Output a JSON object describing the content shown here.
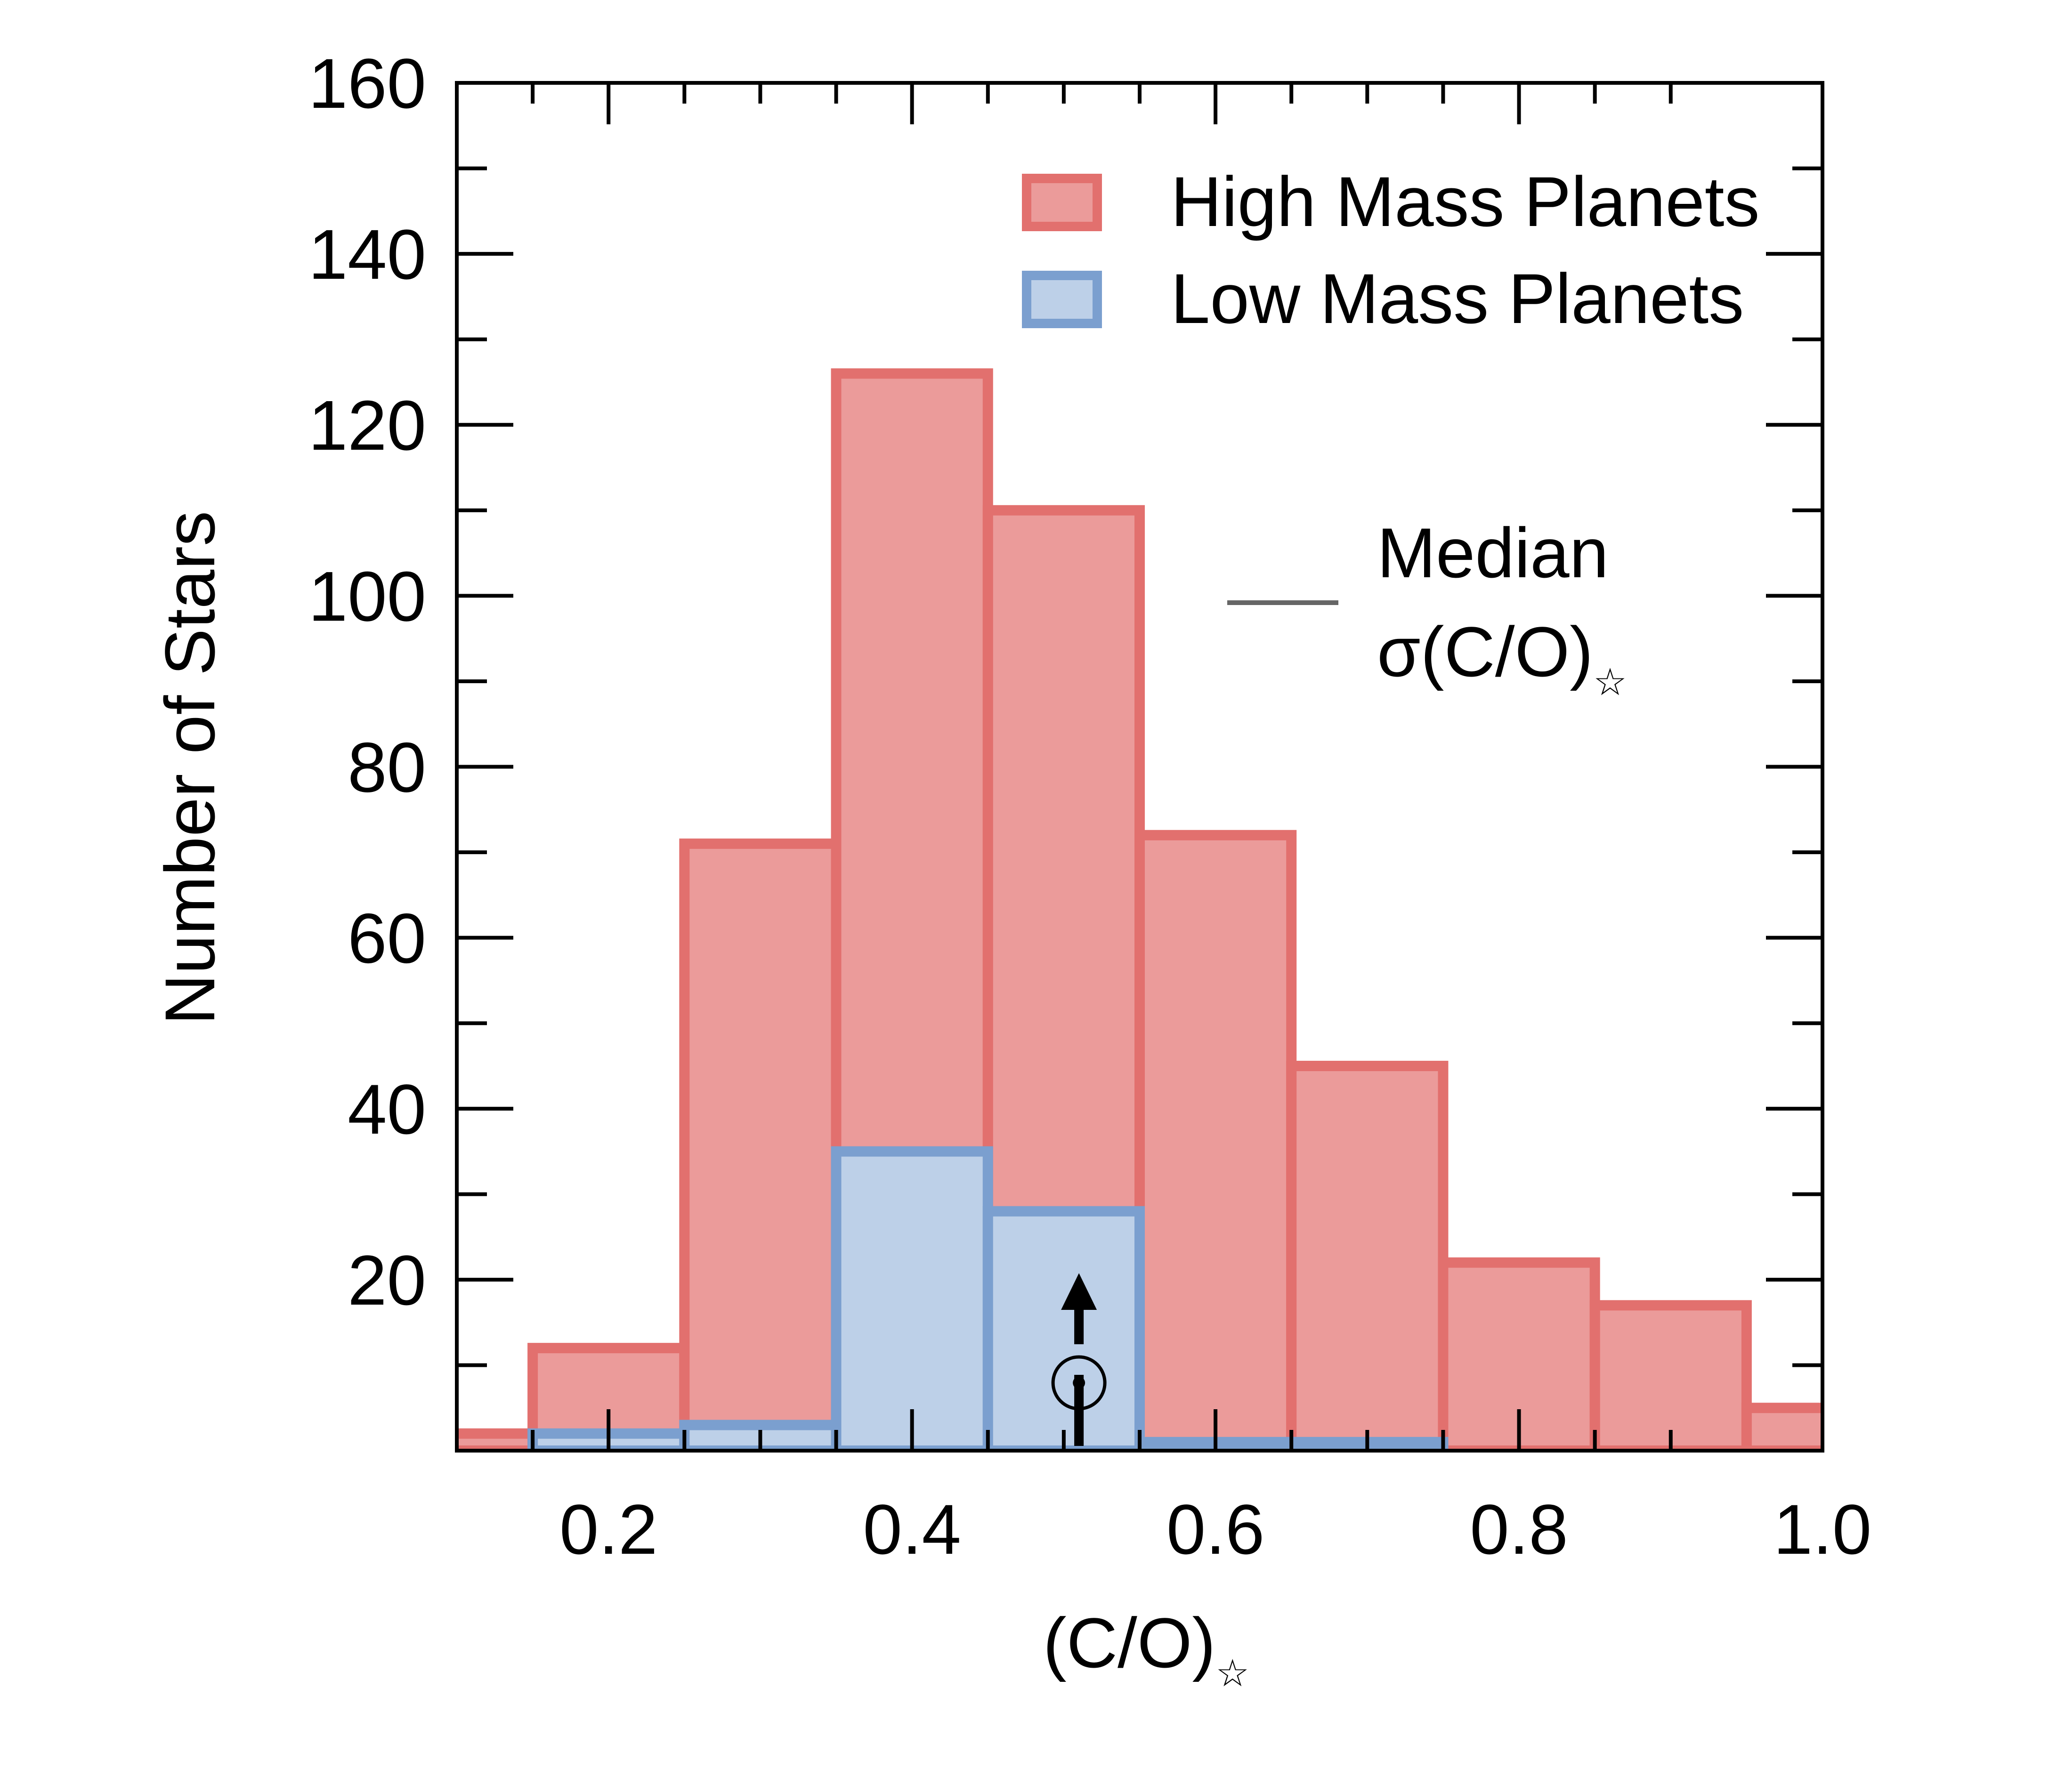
{
  "chart_data": {
    "type": "bar",
    "xlabel": "(C/O)",
    "xlabel_subscript": "☆",
    "ylabel": "Number of Stars",
    "xlim": [
      0.1,
      1.0
    ],
    "ylim": [
      0,
      160
    ],
    "x_ticks": [
      "0.2",
      "0.4",
      "0.6",
      "0.8",
      "1.0"
    ],
    "y_ticks": [
      "20",
      "40",
      "60",
      "80",
      "100",
      "120",
      "140",
      "160"
    ],
    "bin_edges": [
      0.05,
      0.15,
      0.25,
      0.35,
      0.45,
      0.55,
      0.65,
      0.75,
      0.85,
      0.95,
      1.05
    ],
    "series": [
      {
        "name": "High Mass Planets",
        "fill": "#eb9b9a",
        "edge": "#e2706e",
        "values": [
          2,
          12,
          71,
          126,
          110,
          72,
          45,
          22,
          17,
          5
        ]
      },
      {
        "name": "Low Mass Planets",
        "fill": "#bdd0e8",
        "edge": "#7b9fcf",
        "values": [
          0,
          2,
          3,
          35,
          28,
          1,
          1,
          0,
          0,
          0
        ]
      }
    ],
    "legend_position": "top-right",
    "median_uncertainty": {
      "label_line1": "Median",
      "label_line2": "σ(C/O)",
      "label_subscript": "☆",
      "length": 0.075,
      "color": "#666666"
    },
    "solar_marker": {
      "x": 0.51,
      "symbol": "⊙",
      "direction": "up"
    },
    "grid": false
  }
}
